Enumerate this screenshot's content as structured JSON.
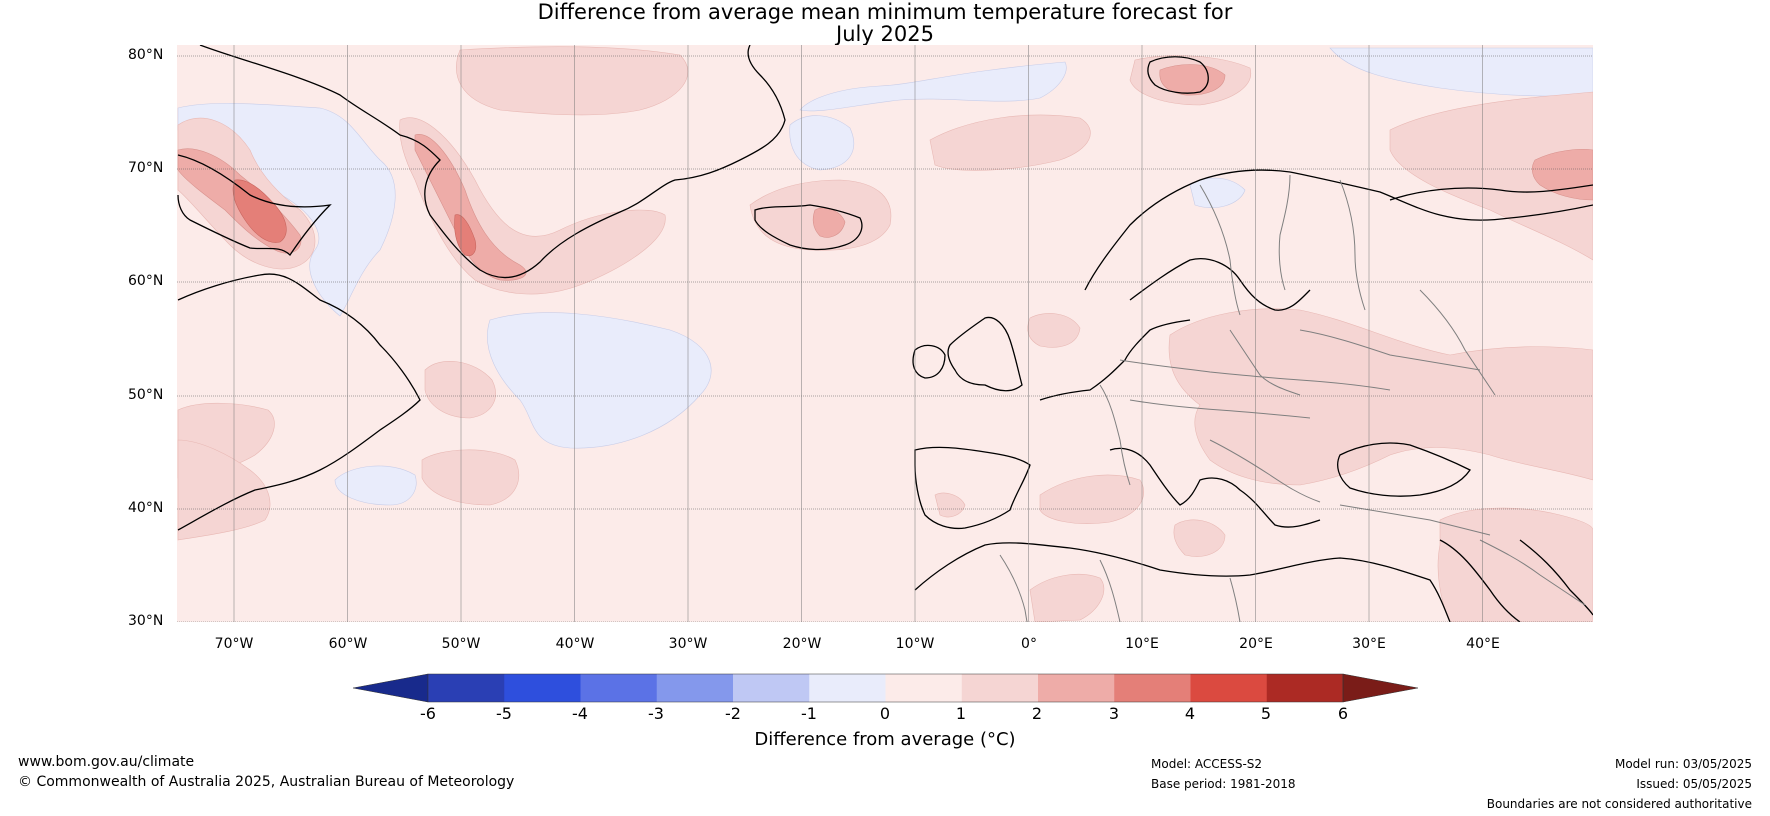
{
  "title": {
    "line1": "Difference from average mean minimum temperature forecast for",
    "line2": "July 2025"
  },
  "map": {
    "lat_labels": [
      "80°N",
      "70°N",
      "60°N",
      "50°N",
      "40°N",
      "30°N"
    ],
    "lon_labels": [
      "70°W",
      "60°W",
      "50°W",
      "40°W",
      "30°W",
      "20°W",
      "10°W",
      "0°",
      "10°E",
      "20°E",
      "30°E",
      "40°E"
    ],
    "background_color": "#fcebe9",
    "colors": {
      "neg_0_1": "#e9ecfb",
      "pos_1_2": "#f5d5d3",
      "pos_2_3": "#eeaca8",
      "pos_3_4": "#e47f78",
      "coast": "#000000",
      "border": "#7f7f7f"
    }
  },
  "colorbar": {
    "ticks": [
      "-6",
      "-5",
      "-4",
      "-3",
      "-2",
      "-1",
      "0",
      "1",
      "2",
      "3",
      "4",
      "5",
      "6"
    ],
    "colors": [
      "#182a8c",
      "#2a3fb4",
      "#2e4fdd",
      "#5b72e6",
      "#8498ec",
      "#bfc8f4",
      "#e9ecfb",
      "#fcebe9",
      "#f5d5d3",
      "#eeaca8",
      "#e47f78",
      "#db4a40",
      "#ac2a24",
      "#7a1c18"
    ],
    "label": "Difference from average (°C)"
  },
  "footer": {
    "website": "www.bom.gov.au/climate",
    "copyright": "© Commonwealth of Australia 2025, Australian Bureau of Meteorology",
    "model": "Model: ACCESS-S2",
    "base_period": "Base period: 1981-2018",
    "model_run": "Model run: 03/05/2025",
    "issued": "Issued: 05/05/2025",
    "disclaimer": "Boundaries are not considered authoritative"
  }
}
